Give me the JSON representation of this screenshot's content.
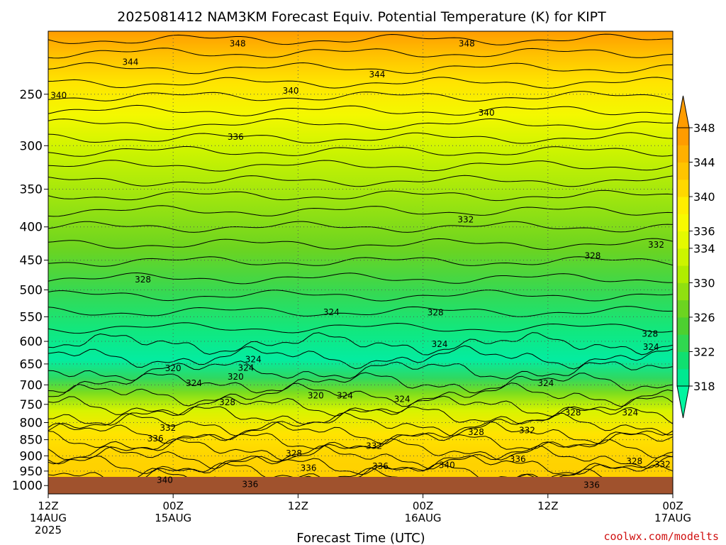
{
  "chart_data": {
    "type": "heatmap",
    "title": "2025081412 NAM3KM Forecast Equiv. Potential Temperature (K) for KIPT",
    "xlabel": "Forecast Time (UTC)",
    "ylabel": "",
    "x_ticks": [
      {
        "hour": 0,
        "lines": [
          "12Z",
          "14AUG",
          "2025"
        ]
      },
      {
        "hour": 12,
        "lines": [
          "00Z",
          "15AUG"
        ]
      },
      {
        "hour": 24,
        "lines": [
          "12Z"
        ]
      },
      {
        "hour": 36,
        "lines": [
          "00Z",
          "16AUG"
        ]
      },
      {
        "hour": 48,
        "lines": [
          "12Z"
        ]
      },
      {
        "hour": 60,
        "lines": [
          "00Z",
          "17AUG"
        ]
      }
    ],
    "xlim": [
      0,
      60
    ],
    "y_ticks": [
      250,
      300,
      350,
      400,
      450,
      500,
      550,
      600,
      650,
      700,
      750,
      800,
      850,
      900,
      950,
      1000
    ],
    "ylim_hpa": [
      200,
      1030
    ],
    "y_scale": "log-pressure",
    "colorbar": {
      "levels": [
        318,
        320,
        322,
        324,
        326,
        328,
        330,
        332,
        334,
        336,
        338,
        340,
        342,
        344,
        346,
        348
      ],
      "labels": [
        318,
        322,
        326,
        330,
        334,
        336,
        340,
        344,
        348
      ],
      "colors": [
        "#00f5a0",
        "#00e890",
        "#10e070",
        "#30d850",
        "#4dd030",
        "#6cd420",
        "#90e010",
        "#b0ec00",
        "#ccf400",
        "#e4fa00",
        "#f8fa00",
        "#ffee00",
        "#ffd800",
        "#ffc400",
        "#ffb000",
        "#ff9c00"
      ],
      "extend": "both"
    },
    "contour_labels": [
      {
        "text": "348",
        "hour": 18.2,
        "p": 209
      },
      {
        "text": "348",
        "hour": 40.2,
        "p": 209
      },
      {
        "text": "344",
        "hour": 7.9,
        "p": 223
      },
      {
        "text": "344",
        "hour": 31.6,
        "p": 233
      },
      {
        "text": "340",
        "hour": 1.0,
        "p": 251
      },
      {
        "text": "340",
        "hour": 23.3,
        "p": 247
      },
      {
        "text": "340",
        "hour": 42.1,
        "p": 267
      },
      {
        "text": "336",
        "hour": 18.0,
        "p": 291
      },
      {
        "text": "332",
        "hour": 40.1,
        "p": 390
      },
      {
        "text": "332",
        "hour": 58.4,
        "p": 426
      },
      {
        "text": "328",
        "hour": 52.3,
        "p": 443
      },
      {
        "text": "328",
        "hour": 9.1,
        "p": 482
      },
      {
        "text": "324",
        "hour": 27.2,
        "p": 541
      },
      {
        "text": "328",
        "hour": 37.2,
        "p": 542
      },
      {
        "text": "328",
        "hour": 57.8,
        "p": 584
      },
      {
        "text": "324",
        "hour": 37.6,
        "p": 606
      },
      {
        "text": "324",
        "hour": 57.9,
        "p": 612
      },
      {
        "text": "324",
        "hour": 19.7,
        "p": 640
      },
      {
        "text": "320",
        "hour": 12.0,
        "p": 660
      },
      {
        "text": "324",
        "hour": 19.0,
        "p": 659
      },
      {
        "text": "320",
        "hour": 18.0,
        "p": 680
      },
      {
        "text": "324",
        "hour": 14.0,
        "p": 696
      },
      {
        "text": "324",
        "hour": 47.8,
        "p": 696
      },
      {
        "text": "320",
        "hour": 25.7,
        "p": 727
      },
      {
        "text": "324",
        "hour": 28.5,
        "p": 727
      },
      {
        "text": "324",
        "hour": 34.0,
        "p": 736
      },
      {
        "text": "328",
        "hour": 17.2,
        "p": 745
      },
      {
        "text": "328",
        "hour": 50.4,
        "p": 772
      },
      {
        "text": "324",
        "hour": 55.9,
        "p": 772
      },
      {
        "text": "332",
        "hour": 11.5,
        "p": 815
      },
      {
        "text": "332",
        "hour": 46.0,
        "p": 822
      },
      {
        "text": "328",
        "hour": 41.1,
        "p": 828
      },
      {
        "text": "336",
        "hour": 10.3,
        "p": 847
      },
      {
        "text": "332",
        "hour": 31.3,
        "p": 869
      },
      {
        "text": "328",
        "hour": 23.6,
        "p": 893
      },
      {
        "text": "336",
        "hour": 45.1,
        "p": 911
      },
      {
        "text": "328",
        "hour": 56.3,
        "p": 918
      },
      {
        "text": "332",
        "hour": 59.0,
        "p": 928
      },
      {
        "text": "340",
        "hour": 38.3,
        "p": 930
      },
      {
        "text": "336",
        "hour": 31.9,
        "p": 934
      },
      {
        "text": "336",
        "hour": 25.0,
        "p": 940
      },
      {
        "text": "340",
        "hour": 11.2,
        "p": 981
      },
      {
        "text": "336",
        "hour": 19.4,
        "p": 996
      },
      {
        "text": "336",
        "hour": 52.2,
        "p": 998
      }
    ],
    "grid": "dotted",
    "legend": "colorbar-right"
  },
  "credit": "coolwx.com/modelts"
}
